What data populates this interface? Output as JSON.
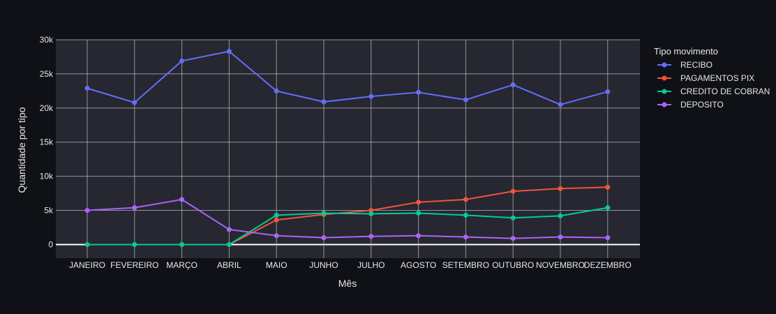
{
  "chart_data": {
    "type": "line",
    "xlabel": "Mês",
    "ylabel": "Quantidade por tipo",
    "ylim": [
      -2000,
      30000
    ],
    "yticks": [
      0,
      5000,
      10000,
      15000,
      20000,
      25000,
      30000
    ],
    "ytick_labels": [
      "0",
      "5k",
      "10k",
      "15k",
      "20k",
      "25k",
      "30k"
    ],
    "grid": true,
    "legend_title": "Tipo movimento",
    "legend_position": "right",
    "categories": [
      "JANEIRO",
      "FEVEREIRO",
      "MARÇO",
      "ABRIL",
      "MAIO",
      "JUNHO",
      "JULHO",
      "AGOSTO",
      "SETEMBRO",
      "OUTUBRO",
      "NOVEMBRO",
      "DEZEMBRO"
    ],
    "series": [
      {
        "name": "RECIBO",
        "color": "#636efa",
        "values": [
          22900,
          20800,
          26900,
          28300,
          22500,
          20900,
          21700,
          22300,
          21200,
          23400,
          20500,
          22400
        ]
      },
      {
        "name": "PAGAMENTOS PIX",
        "color": "#ef553b",
        "values": [
          0,
          0,
          0,
          0,
          3600,
          4400,
          5000,
          6200,
          6600,
          7800,
          8200,
          8400
        ]
      },
      {
        "name": "CREDITO DE COBRAN",
        "color": "#00cc96",
        "values": [
          0,
          0,
          0,
          0,
          4300,
          4600,
          4500,
          4600,
          4300,
          3900,
          4200,
          5400
        ]
      },
      {
        "name": "DEPOSITO",
        "color": "#ab63fa",
        "values": [
          5000,
          5400,
          6600,
          2200,
          1300,
          1000,
          1200,
          1300,
          1100,
          900,
          1100,
          1000
        ]
      }
    ]
  }
}
